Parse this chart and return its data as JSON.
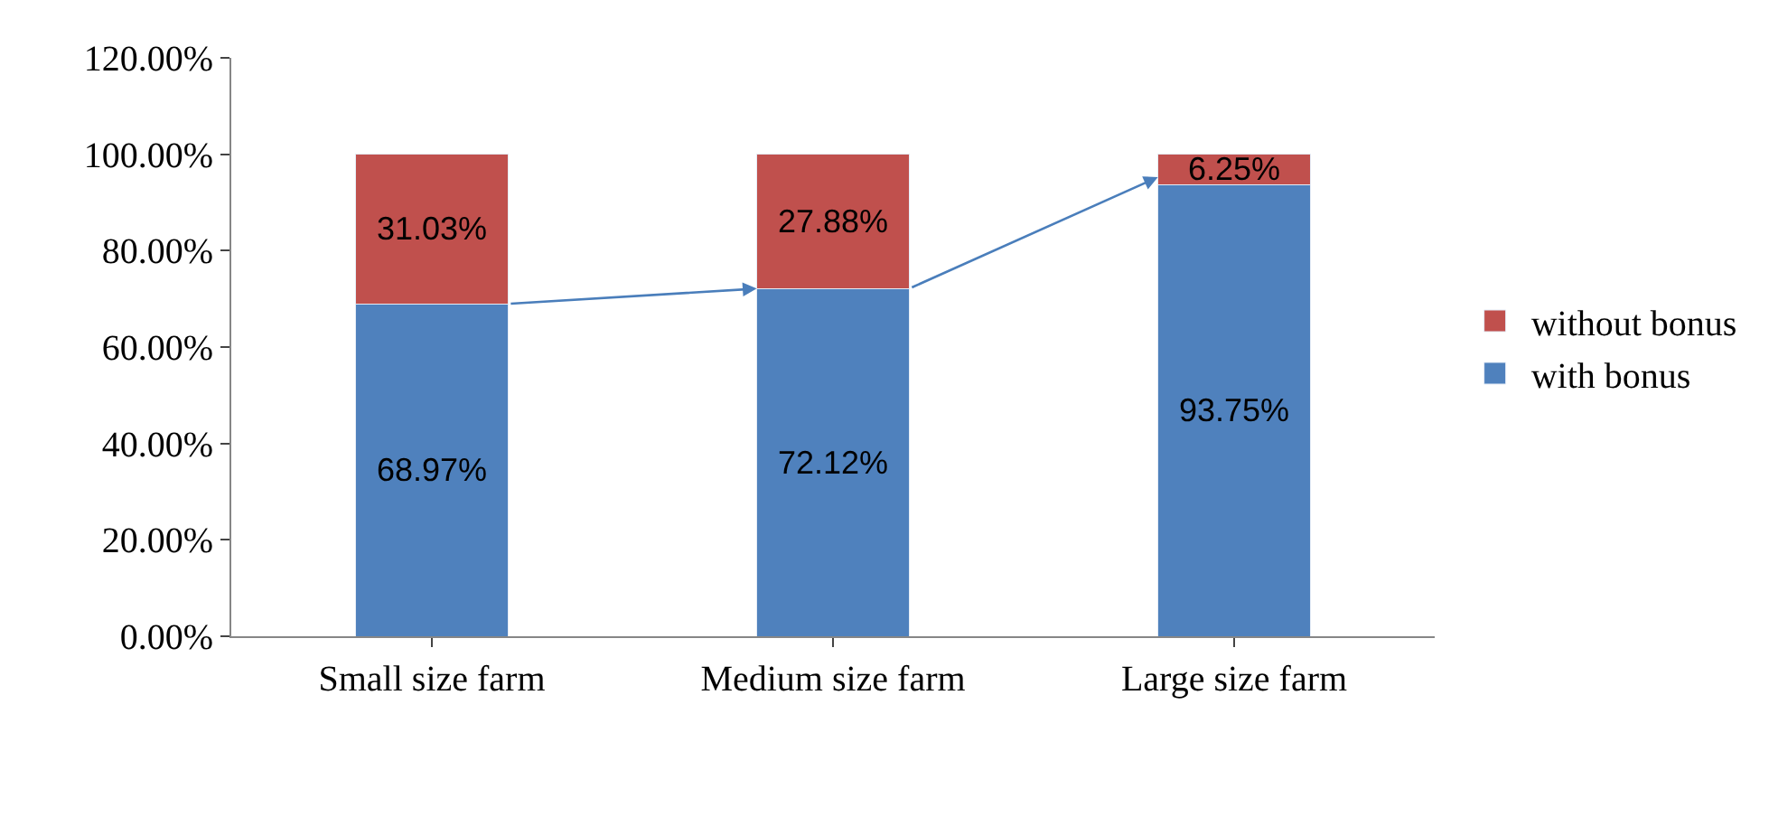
{
  "chart_data": {
    "type": "bar",
    "stacked": true,
    "categories": [
      "Small size farm",
      "Medium size farm",
      "Large size farm"
    ],
    "series": [
      {
        "name": "with bonus",
        "color": "#4f81bd",
        "values": [
          68.97,
          72.12,
          93.75
        ],
        "value_labels": [
          "68.97%",
          "72.12%",
          "93.75%"
        ]
      },
      {
        "name": "without bonus",
        "color": "#c0504d",
        "values": [
          31.03,
          27.88,
          6.25
        ],
        "value_labels": [
          "31.03%",
          "27.88%",
          "6.25%"
        ]
      }
    ],
    "ylim": [
      0,
      120
    ],
    "yticks": [
      {
        "value": 0,
        "label": "0.00%"
      },
      {
        "value": 20,
        "label": "20.00%"
      },
      {
        "value": 40,
        "label": "40.00%"
      },
      {
        "value": 60,
        "label": "60.00%"
      },
      {
        "value": 80,
        "label": "80.00%"
      },
      {
        "value": 100,
        "label": "100.00%"
      },
      {
        "value": 120,
        "label": "120.00%"
      }
    ],
    "legend": "right"
  }
}
